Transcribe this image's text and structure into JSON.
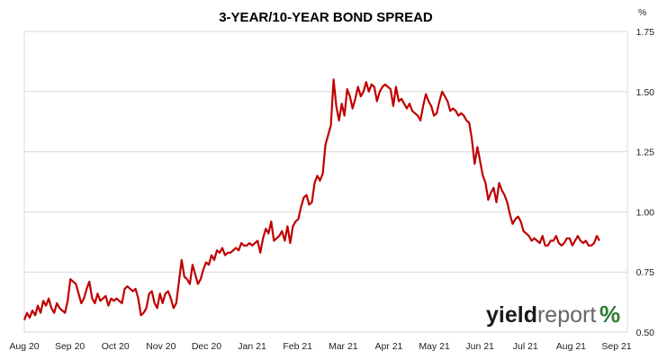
{
  "chart_data": {
    "type": "line",
    "title": "3-YEAR/10-YEAR BOND SPREAD",
    "y_unit": "%",
    "ylim": [
      0.5,
      1.75
    ],
    "y_ticks": [
      "0.50",
      "0.75",
      "1.00",
      "1.25",
      "1.50",
      "1.75"
    ],
    "y_tick_values": [
      0.5,
      0.75,
      1.0,
      1.25,
      1.5,
      1.75
    ],
    "x_ticks": [
      "Aug 20",
      "Sep 20",
      "Oct 20",
      "Nov 20",
      "Dec 20",
      "Jan 21",
      "Feb 21",
      "Mar 21",
      "Apr 21",
      "May 21",
      "Jun 21",
      "Jul 21",
      "Aug 21",
      "Sep 21"
    ],
    "grid": "horizontal",
    "line_color": "#c00000",
    "series": [
      {
        "values": [
          0.55,
          0.58,
          0.56,
          0.59,
          0.57,
          0.61,
          0.58,
          0.63,
          0.61,
          0.64,
          0.6,
          0.58,
          0.62,
          0.6,
          0.59,
          0.58,
          0.63,
          0.72,
          0.71,
          0.7,
          0.66,
          0.62,
          0.64,
          0.68,
          0.71,
          0.64,
          0.62,
          0.66,
          0.63,
          0.64,
          0.65,
          0.61,
          0.64,
          0.63,
          0.64,
          0.63,
          0.62,
          0.68,
          0.69,
          0.68,
          0.67,
          0.68,
          0.64,
          0.57,
          0.58,
          0.6,
          0.66,
          0.67,
          0.62,
          0.6,
          0.66,
          0.62,
          0.66,
          0.67,
          0.64,
          0.6,
          0.62,
          0.71,
          0.8,
          0.73,
          0.72,
          0.7,
          0.78,
          0.74,
          0.7,
          0.72,
          0.76,
          0.79,
          0.78,
          0.82,
          0.8,
          0.84,
          0.83,
          0.85,
          0.82,
          0.83,
          0.83,
          0.84,
          0.85,
          0.84,
          0.87,
          0.86,
          0.86,
          0.87,
          0.86,
          0.87,
          0.88,
          0.83,
          0.89,
          0.93,
          0.91,
          0.96,
          0.88,
          0.89,
          0.9,
          0.92,
          0.88,
          0.94,
          0.87,
          0.94,
          0.96,
          0.97,
          1.02,
          1.06,
          1.07,
          1.03,
          1.04,
          1.12,
          1.15,
          1.13,
          1.16,
          1.28,
          1.32,
          1.36,
          1.55,
          1.44,
          1.38,
          1.45,
          1.4,
          1.51,
          1.48,
          1.43,
          1.47,
          1.52,
          1.48,
          1.5,
          1.54,
          1.5,
          1.53,
          1.52,
          1.46,
          1.5,
          1.52,
          1.53,
          1.52,
          1.51,
          1.44,
          1.52,
          1.46,
          1.47,
          1.45,
          1.43,
          1.45,
          1.42,
          1.41,
          1.4,
          1.38,
          1.44,
          1.49,
          1.46,
          1.44,
          1.4,
          1.41,
          1.46,
          1.5,
          1.48,
          1.46,
          1.42,
          1.43,
          1.42,
          1.4,
          1.41,
          1.4,
          1.38,
          1.37,
          1.3,
          1.2,
          1.27,
          1.21,
          1.15,
          1.12,
          1.05,
          1.08,
          1.1,
          1.04,
          1.12,
          1.09,
          1.07,
          1.04,
          0.99,
          0.95,
          0.97,
          0.98,
          0.96,
          0.92,
          0.91,
          0.9,
          0.88,
          0.89,
          0.88,
          0.87,
          0.9,
          0.86,
          0.86,
          0.88,
          0.88,
          0.9,
          0.87,
          0.86,
          0.87,
          0.89,
          0.89,
          0.86,
          0.88,
          0.9,
          0.88,
          0.87,
          0.88,
          0.86,
          0.86,
          0.87,
          0.9,
          0.88
        ]
      }
    ]
  },
  "logo": {
    "part1": "yield",
    "part2": "report",
    "symbol": "%"
  }
}
